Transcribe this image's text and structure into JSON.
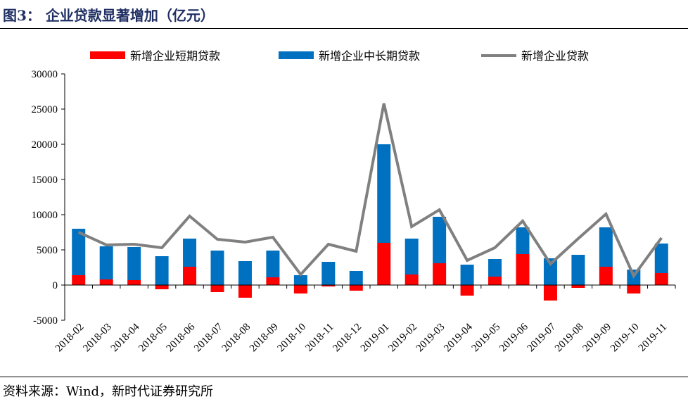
{
  "figure": {
    "title": "图3：  企业贷款显著增加（亿元）",
    "source": "资料来源：Wind，新时代证券研究所"
  },
  "chart_data": {
    "type": "bar",
    "stacked": true,
    "categories": [
      "2018-02",
      "2018-03",
      "2018-04",
      "2018-05",
      "2018-06",
      "2018-07",
      "2018-08",
      "2018-09",
      "2018-10",
      "2018-11",
      "2018-12",
      "2019-01",
      "2019-02",
      "2019-03",
      "2019-04",
      "2019-05",
      "2019-06",
      "2019-07",
      "2019-08",
      "2019-09",
      "2019-10",
      "2019-11"
    ],
    "series": [
      {
        "name": "新增企业短期贷款",
        "type": "bar",
        "color": "#ff0000",
        "values": [
          1400,
          800,
          700,
          -600,
          2600,
          -1000,
          -1800,
          1100,
          -1200,
          -200,
          -800,
          6000,
          1500,
          3100,
          -1500,
          1200,
          4400,
          -2200,
          -400,
          2600,
          -1200,
          1700
        ]
      },
      {
        "name": "新增企业中长期贷款",
        "type": "bar",
        "color": "#0070c0",
        "values": [
          6600,
          4700,
          4700,
          4100,
          4000,
          4900,
          3400,
          3800,
          1400,
          3300,
          2000,
          14000,
          5100,
          6600,
          2900,
          2500,
          3800,
          3800,
          4300,
          5600,
          2200,
          4200
        ]
      },
      {
        "name": "新增企业贷款",
        "type": "line",
        "color": "#808080",
        "values": [
          7500,
          5700,
          5800,
          5300,
          9800,
          6500,
          6100,
          6800,
          1500,
          5800,
          4800,
          25800,
          8300,
          10700,
          3500,
          5300,
          9100,
          3000,
          6600,
          10100,
          1300,
          6700
        ]
      }
    ],
    "ylim": [
      -5000,
      30000
    ],
    "yticks": [
      "30000",
      "25000",
      "20000",
      "15000",
      "10000",
      "5000",
      "0",
      "-5000"
    ],
    "grid": false,
    "legend": "top"
  }
}
